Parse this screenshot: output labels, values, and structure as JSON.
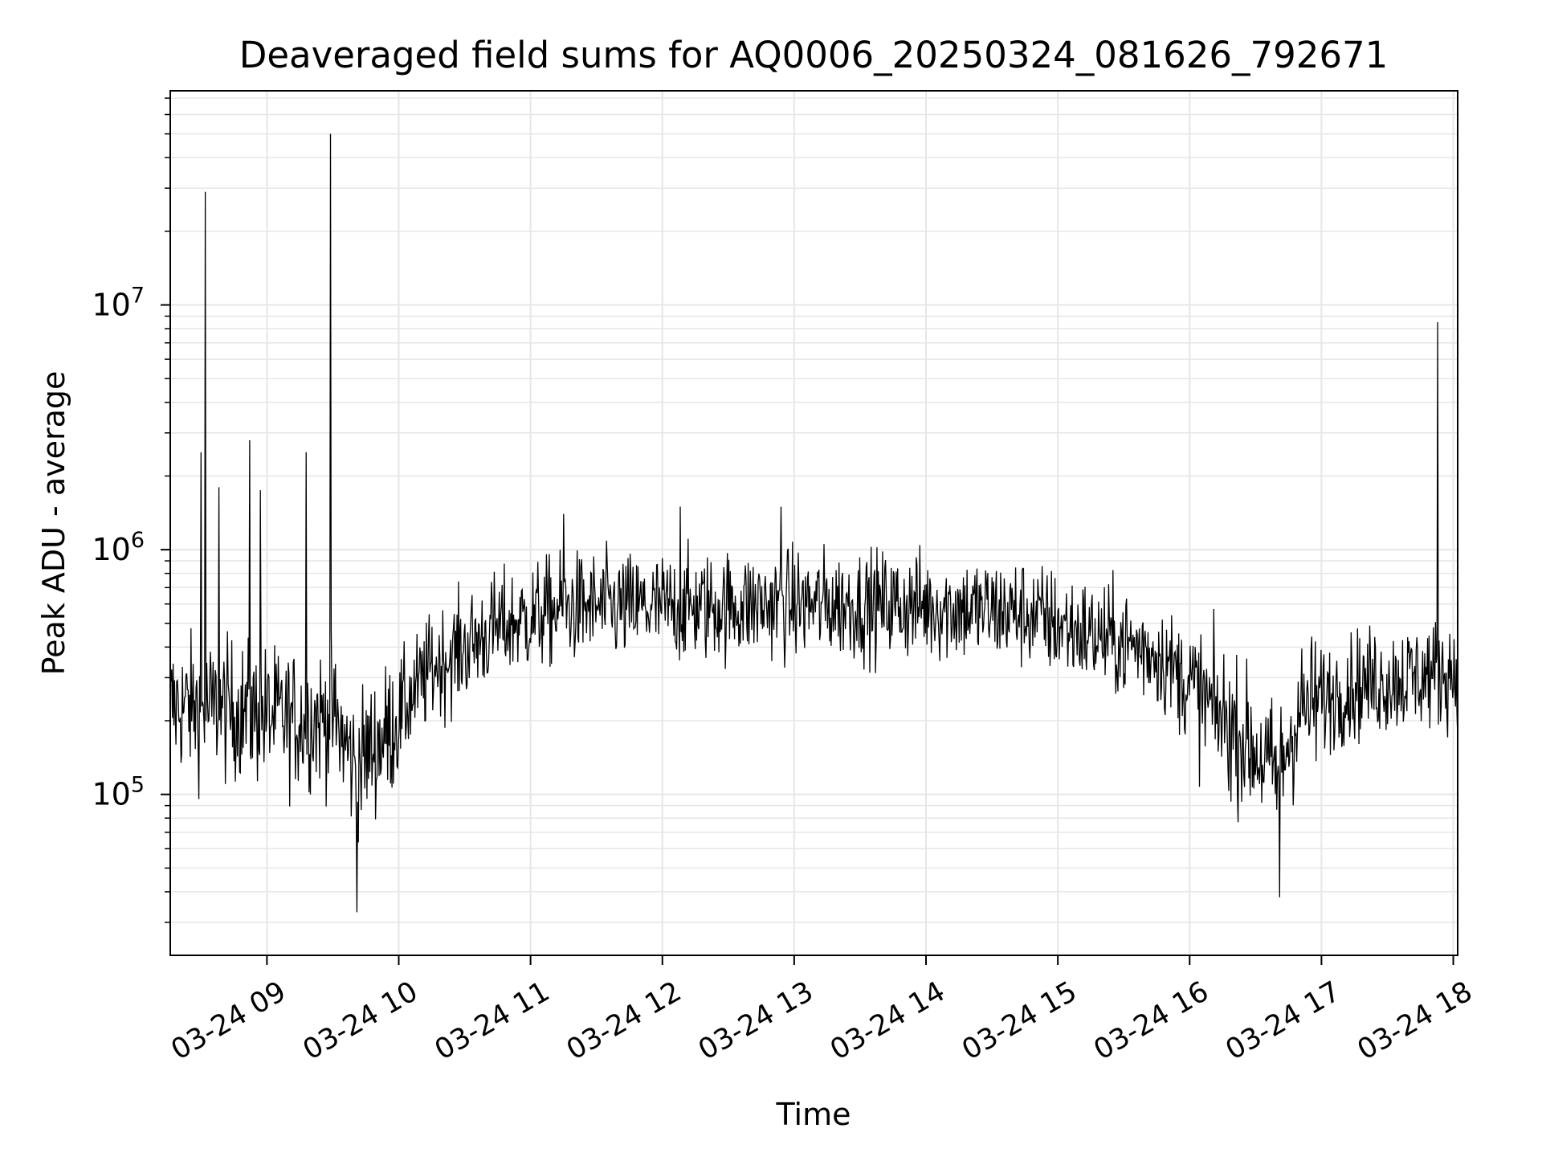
{
  "chart_data": {
    "type": "line",
    "title": "Deaveraged field sums for AQ0006_20250324_081626_792671",
    "xlabel": "Time",
    "ylabel": "Peak ADU - average",
    "x_axis_type": "datetime",
    "xlim": [
      "2025-03-24 08:16",
      "2025-03-24 18:02"
    ],
    "yscale": "log",
    "ylim": [
      22000,
      75000000
    ],
    "grid": true,
    "line_color": "#000000",
    "grid_color": "#e6e6e6",
    "x_tick_labels": [
      "03-24 09",
      "03-24 10",
      "03-24 11",
      "03-24 12",
      "03-24 13",
      "03-24 14",
      "03-24 15",
      "03-24 16",
      "03-24 17",
      "03-24 18"
    ],
    "x_ticks": [
      "2025-03-24 09:00",
      "2025-03-24 10:00",
      "2025-03-24 11:00",
      "2025-03-24 12:00",
      "2025-03-24 13:00",
      "2025-03-24 14:00",
      "2025-03-24 15:00",
      "2025-03-24 16:00",
      "2025-03-24 17:00",
      "2025-03-24 18:00"
    ],
    "y_tick_labels": [
      {
        "base": "10",
        "exp": "5",
        "value": 100000
      },
      {
        "base": "10",
        "exp": "6",
        "value": 1000000
      },
      {
        "base": "10",
        "exp": "7",
        "value": 10000000
      }
    ],
    "trend": {
      "x": [
        "2025-03-24 08:16",
        "2025-03-24 08:45",
        "2025-03-24 09:15",
        "2025-03-24 09:30",
        "2025-03-24 09:40",
        "2025-03-24 09:55",
        "2025-03-24 10:15",
        "2025-03-24 10:45",
        "2025-03-24 11:15",
        "2025-03-24 12:00",
        "2025-03-24 13:00",
        "2025-03-24 14:00",
        "2025-03-24 14:45",
        "2025-03-24 15:15",
        "2025-03-24 15:45",
        "2025-03-24 16:05",
        "2025-03-24 16:30",
        "2025-03-24 16:40",
        "2025-03-24 16:50",
        "2025-03-24 17:15",
        "2025-03-24 18:02"
      ],
      "y": [
        230000,
        220000,
        200000,
        210000,
        130000,
        180000,
        330000,
        480000,
        580000,
        580000,
        600000,
        590000,
        550000,
        450000,
        380000,
        250000,
        150000,
        120000,
        220000,
        280000,
        320000
      ]
    },
    "spikes": [
      {
        "x": "2025-03-24 08:32",
        "y": 29000000
      },
      {
        "x": "2025-03-24 09:29",
        "y": 50000000
      },
      {
        "x": "2025-03-24 08:30",
        "y": 2500000
      },
      {
        "x": "2025-03-24 08:52",
        "y": 2800000
      },
      {
        "x": "2025-03-24 09:18",
        "y": 2500000
      },
      {
        "x": "2025-03-24 08:38",
        "y": 1800000
      },
      {
        "x": "2025-03-24 08:57",
        "y": 1750000
      },
      {
        "x": "2025-03-24 17:53",
        "y": 8500000
      },
      {
        "x": "2025-03-24 09:41",
        "y": 33000
      },
      {
        "x": "2025-03-24 16:41",
        "y": 38000
      },
      {
        "x": "2025-03-24 11:15",
        "y": 1400000
      },
      {
        "x": "2025-03-24 12:08",
        "y": 1500000
      },
      {
        "x": "2025-03-24 12:54",
        "y": 1500000
      }
    ]
  }
}
